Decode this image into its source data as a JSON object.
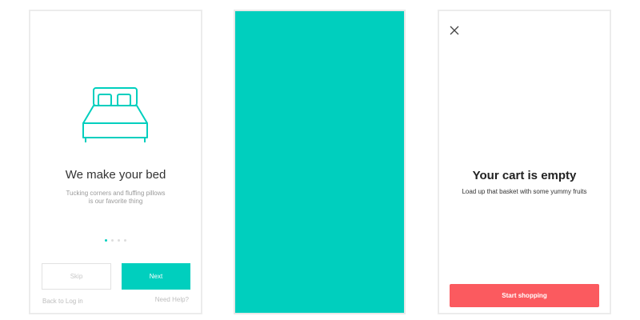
{
  "onboarding": {
    "title": "We make your bed",
    "subtitle_line1": "Tucking corners and fluffing pillows",
    "subtitle_line2": "is our favorite thing",
    "page_indicator": {
      "current": 1,
      "total": 4
    },
    "skip_label": "Skip",
    "next_label": "Next",
    "back_link": "Back to Log in",
    "help_link": "Need Help?",
    "icon": "bed-icon"
  },
  "splash": {
    "color": "#00cfbe"
  },
  "cart": {
    "close_icon": "close-icon",
    "title": "Your cart is empty",
    "subtitle": "Load up that basket with some yummy fruits",
    "button_label": "Start shopping",
    "button_color": "#fb5a5f"
  },
  "colors": {
    "accent": "#00cfbe",
    "danger": "#fb5a5f"
  }
}
